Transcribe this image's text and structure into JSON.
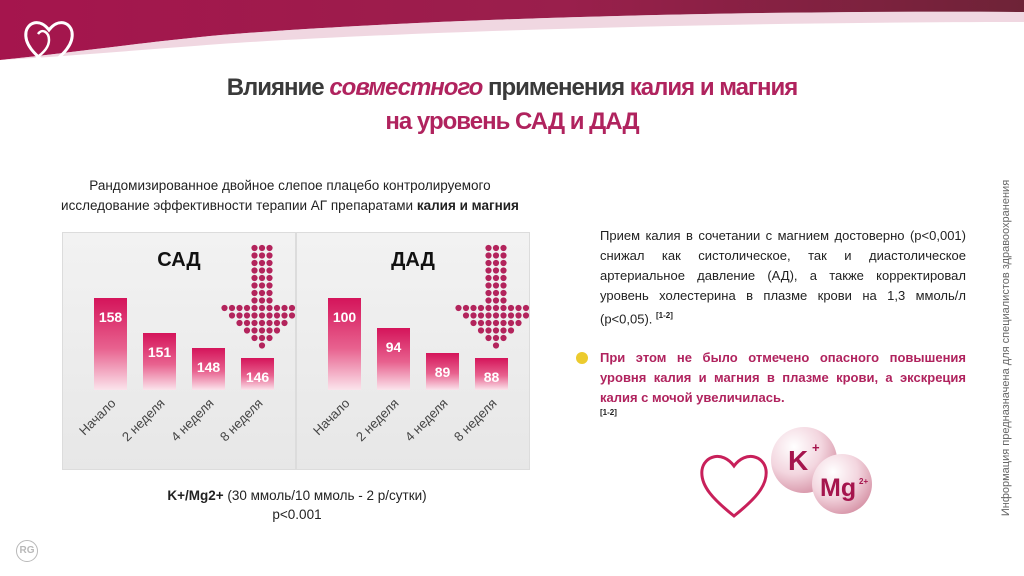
{
  "title": {
    "line1_a": "Влияние ",
    "line1_b": "совместного",
    "line1_c": " применения ",
    "line1_d": "калия и магния",
    "line2": "на уровень САД и ДАД"
  },
  "study": {
    "line1": "Рандомизированное двойное слепое плацебо контролируемого",
    "line2_a": "исследование эффективности терапии АГ препаратами ",
    "line2_b": "калия и магния"
  },
  "chart_data": [
    {
      "type": "bar",
      "title": "САД",
      "categories": [
        "Начало",
        "2 неделя",
        "4 неделя",
        "8 неделя"
      ],
      "values": [
        158,
        151,
        148,
        146
      ],
      "data_labels": [
        "158",
        "151",
        "148",
        "146"
      ],
      "grid": false,
      "colors": {
        "bar": "#d4145a",
        "arrow": "#b3245c"
      }
    },
    {
      "type": "bar",
      "title": "ДАД",
      "categories": [
        "Начало",
        "2 неделя",
        "4 неделя",
        "8 неделя"
      ],
      "values": [
        100,
        94,
        89,
        88
      ],
      "data_labels": [
        "100",
        "94",
        "89",
        "88"
      ],
      "grid": false,
      "colors": {
        "bar": "#d4145a",
        "arrow": "#b3245c"
      }
    }
  ],
  "regimen": {
    "bold": "K+/Mg2+",
    "rest": " (30 ммоль/10 ммоль - 2 р/сутки)",
    "pvalue": "p<0.001"
  },
  "desc": {
    "text": "Прием калия в сочетании с магнием достоверно (р<0,001) снижал как систолическое, так и диастолическое артериальное давление (АД), а также корректировал уровень холестерина в плазме крови на 1,3 ммоль/л (р<0,05). ",
    "ref": "[1-2]"
  },
  "note": {
    "text": "При этом не было отмечено опасного повышения уровня калия и магния в плазме крови, а экскреция калия с мочой увеличилась.",
    "ref": "[1-2]"
  },
  "deco": {
    "k": "K",
    "k_sup": "+",
    "mg": "Mg",
    "mg_sup": "2+"
  },
  "side_text": "Информация предназначена для специалистов здравоохранения",
  "footer_logo": "RG",
  "colors": {
    "brand": "#b0235e",
    "bullet": "#eccb2e"
  }
}
